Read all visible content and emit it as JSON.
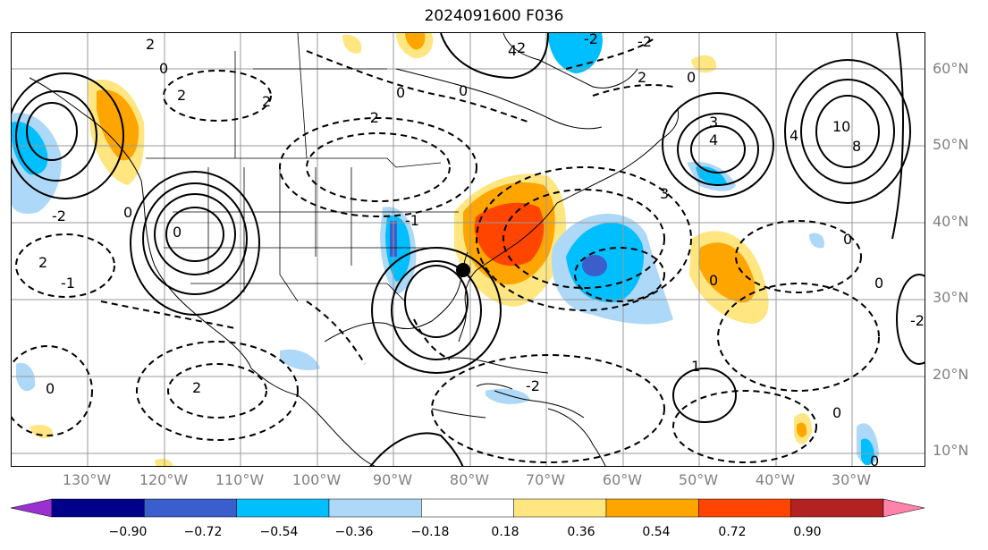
{
  "title": "2024091600 F036",
  "lat_labels": [
    "60°N",
    "50°N",
    "40°N",
    "30°N",
    "20°N",
    "10°N"
  ],
  "lon_labels": [
    "130°W",
    "120°W",
    "110°W",
    "100°W",
    "90°W",
    "80°W",
    "70°W",
    "60°W",
    "50°W",
    "40°W",
    "30°W"
  ],
  "colorbar": {
    "ticks": [
      "−0.90",
      "−0.72",
      "−0.54",
      "−0.36",
      "−0.18",
      "0.18",
      "0.36",
      "0.54",
      "0.72",
      "0.90"
    ],
    "colors": [
      "#9b30d0",
      "#00008b",
      "#3a5fcd",
      "#00bfff",
      "#add8f7",
      "#ffffff",
      "#ffe680",
      "#ffa500",
      "#ff4500",
      "#b22222",
      "#ff82ab"
    ],
    "extend": "both"
  },
  "contour_labels": [
    "2",
    "2",
    "0",
    "2",
    "0",
    "-2",
    "2",
    "0",
    "3",
    "4",
    "-2",
    "-2",
    "0",
    "2",
    "4",
    "3",
    "4",
    "10",
    "8",
    "0",
    "-2",
    "-1",
    "0",
    "2",
    "-1",
    "1",
    "2",
    "0",
    "-2",
    "0",
    "0",
    "0",
    "-2",
    "0",
    "0"
  ],
  "marker": "storm-center-dot"
}
